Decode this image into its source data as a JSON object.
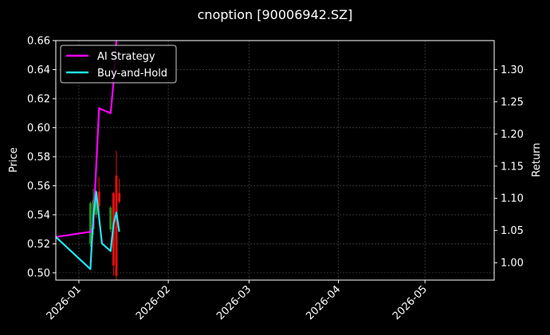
{
  "chart_data": {
    "type": "line",
    "title": "cnoption [90006942.SZ]",
    "left_axis": {
      "label": "Price",
      "ylim": [
        0.495,
        0.66
      ],
      "ticks": [
        "0.50",
        "0.52",
        "0.54",
        "0.56",
        "0.58",
        "0.60",
        "0.62",
        "0.64",
        "0.66"
      ]
    },
    "right_axis": {
      "label": "Return",
      "ylim": [
        0.973,
        1.345
      ],
      "ticks": [
        "1.00",
        "1.05",
        "1.10",
        "1.15",
        "1.20",
        "1.25",
        "1.30"
      ]
    },
    "x_axis": {
      "xlim": [
        "2025-12-24",
        "2026-05-25"
      ],
      "ticks": [
        "2026-01",
        "2026-02",
        "2026-03",
        "2026-04",
        "2026-05"
      ]
    },
    "grid": true,
    "legend_position": "top-left",
    "series": [
      {
        "name": "AI Strategy",
        "axis": "right",
        "color": "#ff00ff",
        "x": [
          "2025-12-24",
          "2026-01-05",
          "2026-01-06",
          "2026-01-07",
          "2026-01-08",
          "2026-01-09",
          "2026-01-12",
          "2026-01-13",
          "2026-01-14"
        ],
        "y": [
          1.04,
          1.048,
          1.055,
          1.15,
          1.24,
          1.238,
          1.232,
          1.28,
          1.345
        ]
      },
      {
        "name": "Buy-and-Hold",
        "axis": "right",
        "color": "#22e5f2",
        "x": [
          "2025-12-24",
          "2026-01-05",
          "2026-01-06",
          "2026-01-07",
          "2026-01-08",
          "2026-01-09",
          "2026-01-12",
          "2026-01-13",
          "2026-01-14",
          "2026-01-15"
        ],
        "y": [
          1.04,
          0.99,
          1.07,
          1.11,
          1.07,
          1.03,
          1.018,
          1.06,
          1.078,
          1.048
        ]
      }
    ],
    "candles": [
      {
        "date": "2026-01-05",
        "open": 0.52,
        "close": 0.548,
        "high": 0.549,
        "low": 0.518
      },
      {
        "date": "2026-01-06",
        "open": 0.53,
        "close": 0.55,
        "high": 0.558,
        "low": 0.526
      },
      {
        "date": "2026-01-07",
        "open": 0.54,
        "close": 0.555,
        "high": 0.557,
        "low": 0.538
      },
      {
        "date": "2026-01-08",
        "open": 0.556,
        "close": 0.546,
        "high": 0.566,
        "low": 0.54
      },
      {
        "date": "2026-01-12",
        "open": 0.53,
        "close": 0.545,
        "high": 0.546,
        "low": 0.528
      },
      {
        "date": "2026-01-13",
        "open": 0.555,
        "close": 0.505,
        "high": 0.556,
        "low": 0.498
      },
      {
        "date": "2026-01-14",
        "open": 0.567,
        "close": 0.498,
        "high": 0.584,
        "low": 0.495
      },
      {
        "date": "2026-01-15",
        "open": 0.555,
        "close": 0.549,
        "high": 0.565,
        "low": 0.548
      }
    ],
    "candle_colors": {
      "up": "#2e8b1e",
      "down": "#e01010"
    }
  }
}
